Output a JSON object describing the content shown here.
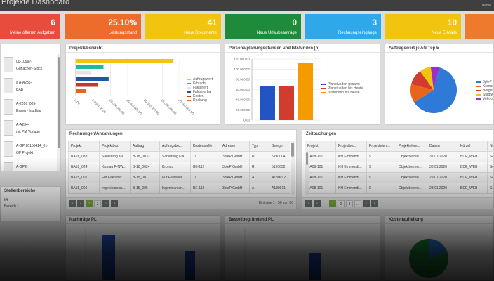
{
  "header": {
    "title": "Projekte Dashboard",
    "user": "Demo"
  },
  "kpis": [
    {
      "value": "6",
      "label": "Meine offenen Aufgaben",
      "color": "#e74c3c"
    },
    {
      "value": "25.10%",
      "label": "Leistungsstand",
      "color": "#ee6c2b"
    },
    {
      "value": "41",
      "label": "Neue Dokumente",
      "color": "#f1c40f"
    },
    {
      "value": "0",
      "label": "Neue Urlaubsanträge",
      "color": "#1e8b3a"
    },
    {
      "value": "3",
      "label": "Rechnungseingänge",
      "color": "#2ea8e8"
    },
    {
      "value": "10",
      "label": "Neue E-Mails",
      "color": "#f1c40f"
    }
  ],
  "sidebar": {
    "items": [
      {
        "lines": [
          "00-1099?-",
          "Gunachen-Stock"
        ]
      },
      {
        "lines": [
          "a A-A235-",
          "BAB"
        ]
      },
      {
        "lines": [
          "A-2016_005-",
          "Essen - Ing.Bau"
        ]
      },
      {
        "lines": [
          "A-A234-",
          "mit PM Vorlage"
        ]
      },
      {
        "lines": [
          "A-GP 20150414_01-",
          "GP Projekt"
        ]
      },
      {
        "lines": [
          "A-GP2-",
          ""
        ]
      }
    ],
    "bottom_title": "Stellenbereiche",
    "bottom_items": [
      "k/t",
      "Bereich 1"
    ]
  },
  "projektuebersicht": {
    "title": "Projektübersicht",
    "chart_data": {
      "type": "bar",
      "orientation": "horizontal",
      "categories": [
        "Auftragswert",
        "Erbracht",
        "Fakturiert",
        "Fakturierbar",
        "Kosten",
        "Deckung"
      ],
      "values": [
        28000000,
        8000000,
        4500000,
        9500000,
        6500000,
        3000000
      ],
      "colors": [
        "#f1c40f",
        "#1abc9c",
        "#e5e5e5",
        "#2255a4",
        "#c0392b",
        "#e8651a"
      ],
      "xlim": [
        0,
        30000000
      ],
      "tick_labels": [
        "0,00",
        "5.000.000,00",
        "10.000.000,00",
        "15.000.000,00",
        "20.000.000,00",
        "25.000.000,00",
        "30.000.000,00"
      ]
    }
  },
  "personal": {
    "title": "Personalplanungsstunden und Iststunden [h]",
    "chart_data": {
      "type": "bar",
      "series": [
        {
          "name": "Planstunden gesamt",
          "values": [
            67000
          ],
          "color": "#2255c4"
        },
        {
          "name": "Planstunden bis Heute",
          "values": [
            67000
          ],
          "color": "#d03c2e"
        },
        {
          "name": "Iststunden bis Heute",
          "values": [
            113000
          ],
          "color": "#f59b00"
        }
      ],
      "ylim": [
        0,
        120000
      ],
      "tick_labels": [
        "0,00",
        "20.000,00",
        "40.000,00",
        "60.000,00",
        "80.000,00",
        "100.000,00",
        "120.000,00"
      ]
    }
  },
  "top5": {
    "title": "Auftragswert je AG Top 5",
    "chart_data": {
      "type": "pie",
      "labels": [
        "3pleP",
        "Kronau",
        "Bergen",
        "Stadtw",
        "Vektron"
      ],
      "values": [
        62,
        13,
        11,
        8,
        6
      ],
      "colors": [
        "#2f7ad6",
        "#e8651a",
        "#d03c2e",
        "#f1c40f",
        "#9b2fc9"
      ]
    }
  },
  "rechnungen": {
    "title": "Rechnungen/Anzahlungen",
    "columns": [
      "Projekt",
      "Projektbez.",
      "Auftrag",
      "Auftragsbez.",
      "Kostenstelle",
      "Adresse",
      "Typ",
      "Belegnr"
    ],
    "rows": [
      [
        "BA18_033",
        "Sanierung Kla...",
        "B-18_0033",
        "Sanierung Kla...",
        "11",
        "3pleP GmbH",
        "R",
        "5190004"
      ],
      [
        "BA18_024",
        "Kronau P-NW...",
        "B-18_0024",
        "Kronau",
        "BE-112",
        "3pleP GmbH",
        "R",
        "5190002"
      ],
      [
        "BA15_001",
        "Für Fakturier...",
        "B-15_001",
        "Für Fakturier...",
        "11",
        "3pleP GmbH",
        "A",
        "A180012"
      ],
      [
        "BA15_006",
        "Ingenieurcon...",
        "B-15_006",
        "Ingenieurcon...",
        "BE-112",
        "3pleP GmbH",
        "A",
        "A180011"
      ]
    ],
    "pager": {
      "pages": [
        "1",
        "2"
      ],
      "info": "Einträge 1 - 50 von 86"
    }
  },
  "zeitbuchungen": {
    "title": "Zeitbuchungen",
    "columns": [
      "Projekt",
      "Projektbez.",
      "Projektelem...",
      "Projektelem...",
      "Datum",
      "Kürzel",
      "Name"
    ],
    "rows": [
      [
        "BA08-101",
        "KH Emmendi...",
        "9",
        "Objektbetreu...",
        "31.01.2020",
        "BDE_WEB",
        "Schäfer"
      ],
      [
        "BA08-101",
        "KH Emmendi...",
        "9",
        "Objektbetreu...",
        "30.01.2020",
        "BDE_WEB",
        "Schäfer"
      ],
      [
        "BA08-101",
        "KH Emmendi...",
        "9",
        "Objektbetreu...",
        "29.01.2020",
        "BDE_WEB",
        "Schäfer"
      ],
      [
        "BA08-101",
        "KH Emmendi...",
        "9",
        "Objektbetreu...",
        "28.01.2020",
        "BDE_WEB",
        "Schäfer"
      ]
    ],
    "pager": {
      "pages": [
        "1",
        "2",
        "3",
        "..."
      ]
    }
  },
  "bottom_panels": [
    {
      "title": "Nachträge PL"
    },
    {
      "title": "Bestellbegründend PL"
    },
    {
      "title": "Kostenaufteilung"
    }
  ]
}
